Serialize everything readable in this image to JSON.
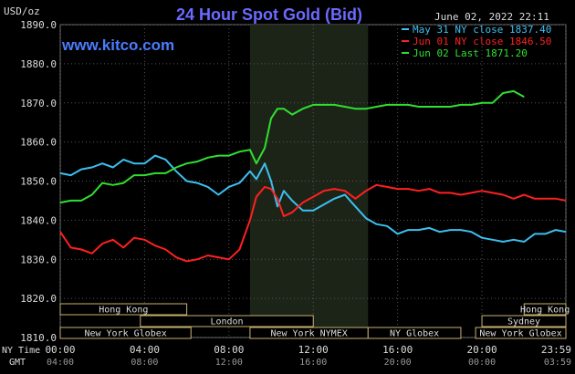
{
  "header": {
    "title": "24 Hour Spot Gold (Bid)",
    "unit": "USD/oz",
    "website": "www.kitco.com",
    "timestamp": "June 02, 2022 22:11"
  },
  "legend": [
    {
      "label": "May 31 NY close 1837.40",
      "color": "#3cc0f0"
    },
    {
      "label": "Jun 01 NY close 1846.50",
      "color": "#ff2020"
    },
    {
      "label": "Jun 02 Last 1871.20",
      "color": "#30e030"
    }
  ],
  "axis": {
    "y_ticks": [
      "1890.0",
      "1880.0",
      "1870.0",
      "1860.0",
      "1850.0",
      "1840.0",
      "1830.0",
      "1820.0",
      "1810.0"
    ],
    "ny_time_label": "NY Time",
    "gmt_label": "GMT",
    "ny_ticks": [
      "00:00",
      "04:00",
      "08:00",
      "12:00",
      "16:00",
      "20:00",
      "23:59"
    ],
    "gmt_ticks": [
      "04:00",
      "08:00",
      "12:00",
      "16:00",
      "20:00",
      "00:00",
      "03:59"
    ]
  },
  "markets": [
    {
      "label": "Hong Kong",
      "start": 0,
      "end": 6.0,
      "row": 0
    },
    {
      "label": "Hong Kong",
      "start": 22.0,
      "end": 24.0,
      "row": 0
    },
    {
      "label": "London",
      "start": 3.8,
      "end": 12.0,
      "row": 1
    },
    {
      "label": "Sydney",
      "start": 20.0,
      "end": 24.0,
      "row": 1
    },
    {
      "label": "New York Globex",
      "start": 0,
      "end": 6.2,
      "row": 2
    },
    {
      "label": "New York NYMEX",
      "start": 9.0,
      "end": 14.6,
      "row": 2
    },
    {
      "label": "NY Globex",
      "start": 14.6,
      "end": 19.0,
      "row": 2
    },
    {
      "label": "New York Globex",
      "start": 19.7,
      "end": 24.0,
      "row": 2
    }
  ],
  "chart_data": {
    "type": "line",
    "title": "24 Hour Spot Gold (Bid)",
    "ylabel": "USD/oz",
    "ylim": [
      1810,
      1890
    ],
    "xlim_hours": [
      0,
      23.98
    ],
    "shaded_region_hours": [
      9.0,
      14.6
    ],
    "series": [
      {
        "name": "May 31",
        "color": "#3cc0f0",
        "x": [
          0,
          0.5,
          1,
          1.5,
          2,
          2.5,
          3,
          3.5,
          4,
          4.5,
          5,
          5.5,
          6,
          6.5,
          7,
          7.5,
          8,
          8.5,
          9,
          9.3,
          9.7,
          10,
          10.3,
          10.6,
          11,
          11.5,
          12,
          12.5,
          13,
          13.5,
          14,
          14.5,
          15,
          15.5,
          16,
          16.5,
          17,
          17.5,
          18,
          18.5,
          19,
          19.5,
          20,
          20.5,
          21,
          21.5,
          22,
          22.5,
          23,
          23.5,
          23.98
        ],
        "values": [
          1852,
          1851.5,
          1853,
          1853.5,
          1854.5,
          1853.5,
          1855.5,
          1854.5,
          1854.5,
          1856.5,
          1855.5,
          1852.5,
          1850,
          1849.5,
          1848.5,
          1846.5,
          1848.5,
          1849.5,
          1852.5,
          1850.5,
          1854.5,
          1850,
          1843.5,
          1847.5,
          1845,
          1842.5,
          1842.5,
          1844,
          1845.5,
          1846.5,
          1843.5,
          1840.5,
          1839,
          1838.5,
          1836.5,
          1837.5,
          1837.5,
          1838,
          1837,
          1837.5,
          1837.5,
          1837,
          1835.5,
          1835,
          1834.5,
          1835,
          1834.5,
          1836.5,
          1836.5,
          1837.5,
          1837
        ]
      },
      {
        "name": "Jun 01",
        "color": "#ff2020",
        "x": [
          0,
          0.5,
          1,
          1.5,
          2,
          2.5,
          3,
          3.5,
          4,
          4.5,
          5,
          5.5,
          6,
          6.5,
          7,
          7.5,
          8,
          8.5,
          9,
          9.3,
          9.7,
          10,
          10.3,
          10.6,
          11,
          11.5,
          12,
          12.5,
          13,
          13.5,
          14,
          14.5,
          15,
          15.5,
          16,
          16.5,
          17,
          17.5,
          18,
          18.5,
          19,
          19.5,
          20,
          20.5,
          21,
          21.5,
          22,
          22.5,
          23,
          23.5,
          23.98
        ],
        "values": [
          1837,
          1833,
          1832.5,
          1831.5,
          1834,
          1835,
          1833,
          1835.5,
          1835,
          1833.5,
          1832.5,
          1830.5,
          1829.5,
          1830,
          1831,
          1830.5,
          1830,
          1832.5,
          1840,
          1846,
          1848.5,
          1848,
          1845.5,
          1841,
          1842,
          1844.5,
          1846,
          1847.5,
          1848,
          1847.5,
          1845.5,
          1847.5,
          1849,
          1848.5,
          1848,
          1848,
          1847.5,
          1848,
          1847,
          1847,
          1846.5,
          1847,
          1847.5,
          1847,
          1846.5,
          1845.5,
          1846.5,
          1845.5,
          1845.5,
          1845.5,
          1845
        ]
      },
      {
        "name": "Jun 02",
        "color": "#30e030",
        "x": [
          0,
          0.5,
          1,
          1.5,
          2,
          2.5,
          3,
          3.5,
          4,
          4.5,
          5,
          5.5,
          6,
          6.5,
          7,
          7.5,
          8,
          8.5,
          9,
          9.3,
          9.7,
          10,
          10.3,
          10.6,
          11,
          11.5,
          12,
          12.5,
          13,
          13.5,
          14,
          14.5,
          15,
          15.5,
          16,
          16.5,
          17,
          17.5,
          18,
          18.5,
          19,
          19.5,
          20,
          20.5,
          21,
          21.5,
          22
        ],
        "values": [
          1844.5,
          1845,
          1845,
          1846.5,
          1849.5,
          1849,
          1849.5,
          1851.5,
          1851.5,
          1852,
          1852,
          1853.5,
          1854.5,
          1855,
          1856,
          1856.5,
          1856.5,
          1857.5,
          1858,
          1854.5,
          1858.5,
          1866,
          1868.5,
          1868.5,
          1867,
          1868.5,
          1869.5,
          1869.5,
          1869.5,
          1869,
          1868.5,
          1868.5,
          1869,
          1869.5,
          1869.5,
          1869.5,
          1869,
          1869,
          1869,
          1869,
          1869.5,
          1869.5,
          1870,
          1870,
          1872.5,
          1873,
          1871.5
        ]
      }
    ]
  }
}
